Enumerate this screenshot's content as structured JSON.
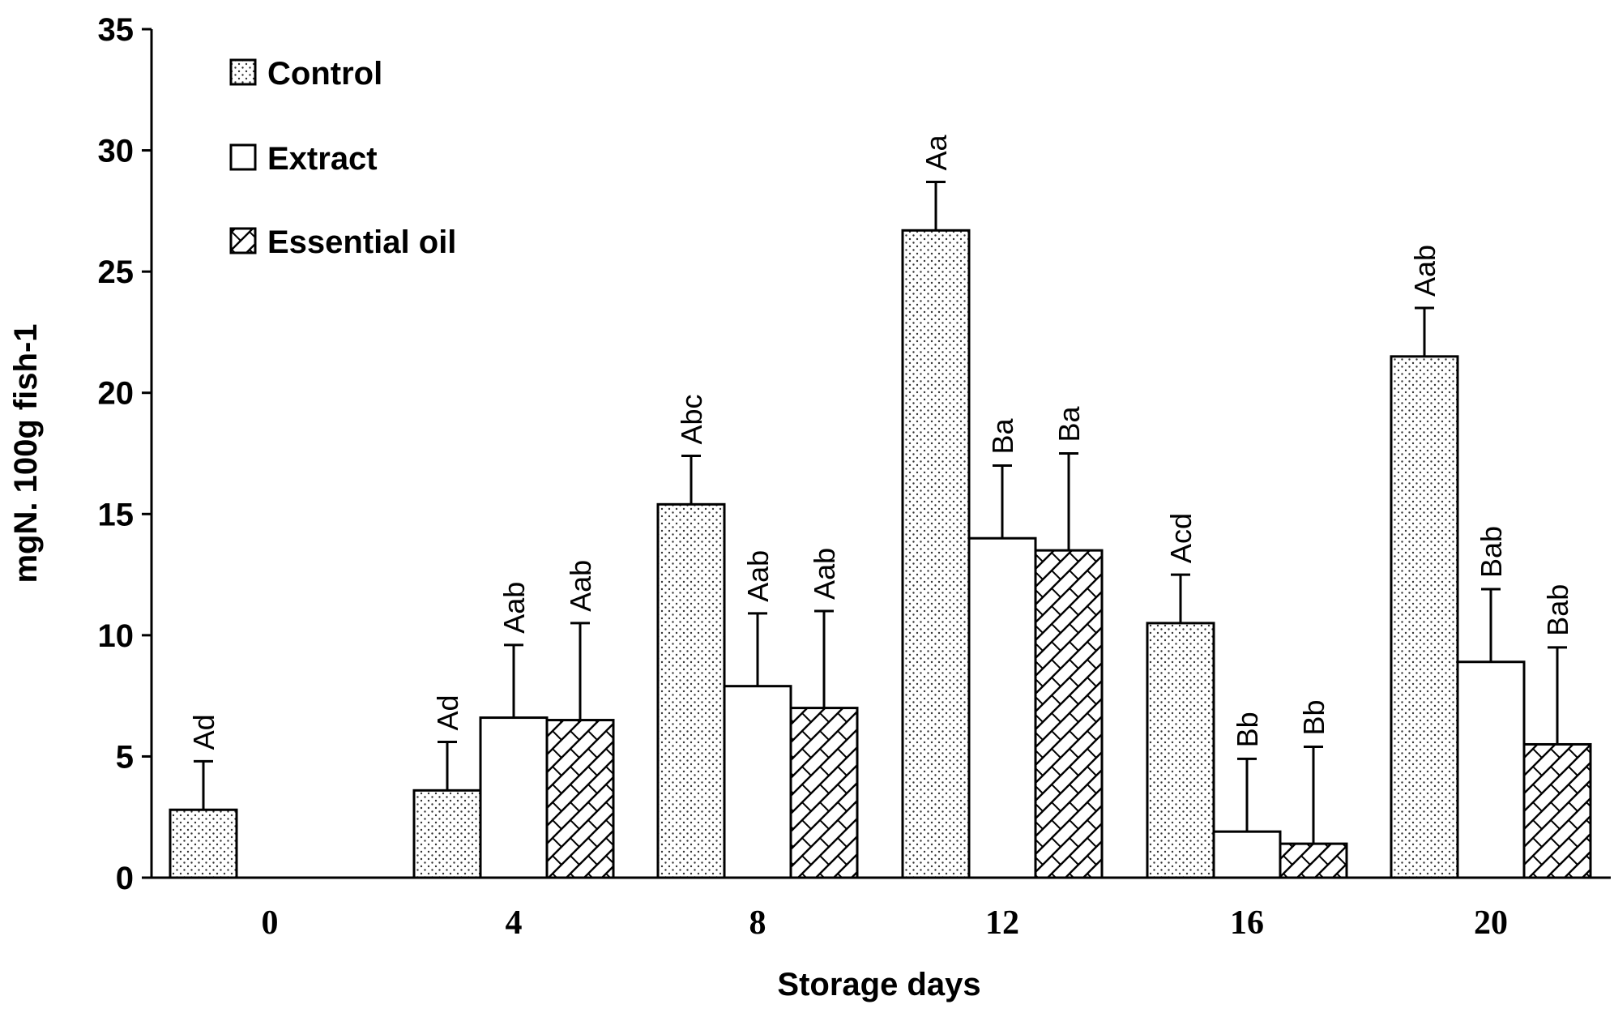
{
  "chart_data": {
    "type": "bar",
    "xlabel": "Storage days",
    "ylabel": "mgN. 100g fish-1",
    "categories": [
      "0",
      "4",
      "8",
      "12",
      "16",
      "20"
    ],
    "ylim": [
      0,
      35
    ],
    "yticks": [
      0,
      5,
      10,
      15,
      20,
      25,
      30,
      35
    ],
    "grid": false,
    "legend_position": "top-left",
    "series": [
      {
        "name": "Control",
        "pattern": "dots",
        "values": [
          2.8,
          3.6,
          15.4,
          26.7,
          10.5,
          21.5
        ],
        "errors": [
          2.0,
          2.0,
          2.0,
          2.0,
          2.0,
          2.0
        ],
        "labels": [
          "Ad",
          "Ad",
          "Abc",
          "Aa",
          "Acd",
          "Aab"
        ]
      },
      {
        "name": "Extract",
        "pattern": "none",
        "values": [
          null,
          6.6,
          7.9,
          14.0,
          1.9,
          8.9
        ],
        "errors": [
          null,
          3.0,
          3.0,
          3.0,
          3.0,
          3.0
        ],
        "labels": [
          null,
          "Aab",
          "Aab",
          "Ba",
          "Bb",
          "Bab"
        ]
      },
      {
        "name": "Essential oil",
        "pattern": "crosshatch",
        "values": [
          null,
          6.5,
          7.0,
          13.5,
          1.4,
          5.5
        ],
        "errors": [
          null,
          4.0,
          4.0,
          4.0,
          4.0,
          4.0
        ],
        "labels": [
          null,
          "Aab",
          "Aab",
          "Ba",
          "Bb",
          "Bab"
        ]
      }
    ]
  }
}
